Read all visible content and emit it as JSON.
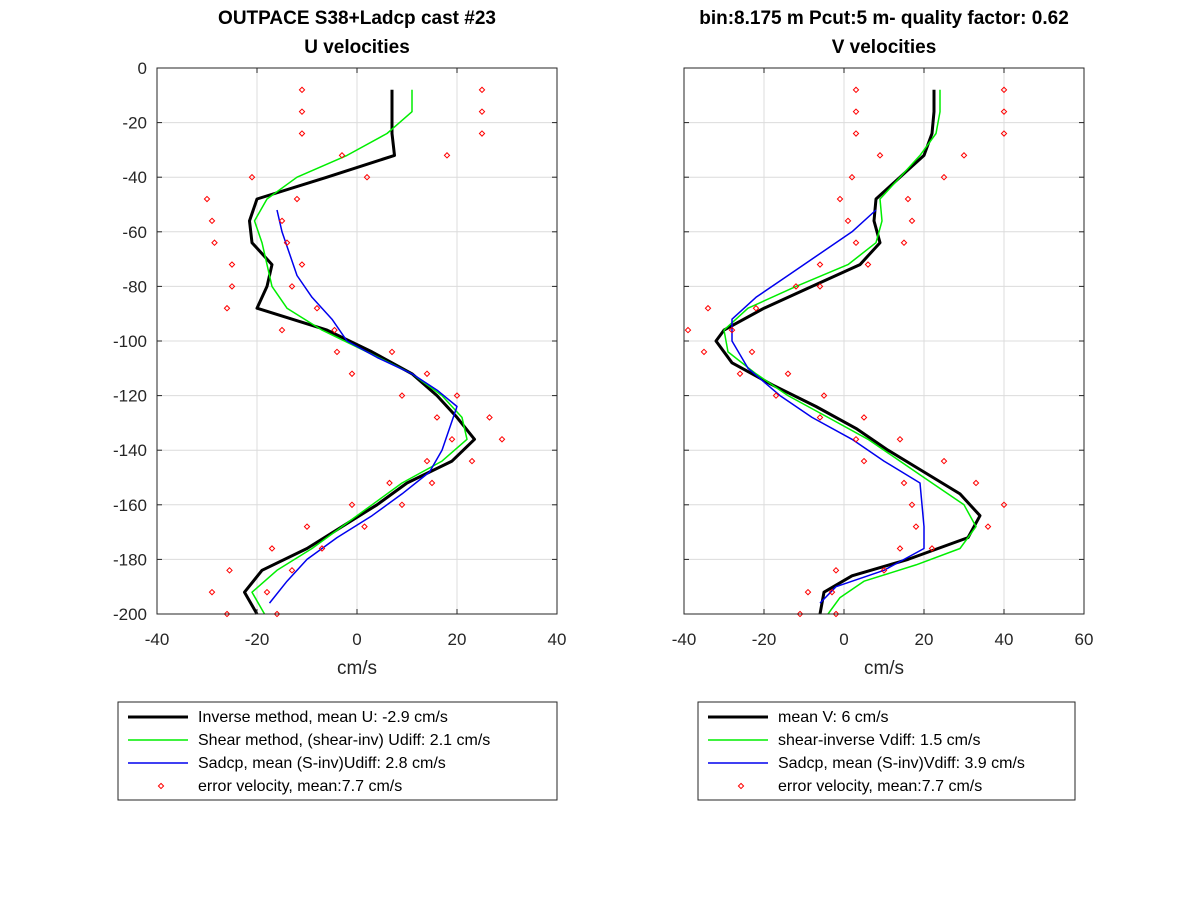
{
  "chart_data": [
    {
      "type": "line",
      "title": "OUTPACE S38+Ladcp cast #23",
      "subtitle": "U velocities",
      "xlabel": "cm/s",
      "ylabel": "",
      "xlim": [
        -40,
        40
      ],
      "ylim": [
        -200,
        0
      ],
      "xticks": [
        "-40",
        "-20",
        "0",
        "20",
        "40"
      ],
      "yticks": [
        "0",
        "-20",
        "-40",
        "-60",
        "-80",
        "-100",
        "-120",
        "-140",
        "-160",
        "-180",
        "-200"
      ],
      "grid": true,
      "legend_position": "below",
      "series": [
        {
          "name": "Inverse method, mean U:  -2.9 cm/s",
          "color": "#000000",
          "style": "line-thick",
          "points": [
            [
              7,
              -8
            ],
            [
              7,
              -16
            ],
            [
              7,
              -24
            ],
            [
              7.5,
              -32
            ],
            [
              -6,
              -40
            ],
            [
              -20,
              -48
            ],
            [
              -21.5,
              -56
            ],
            [
              -21,
              -64
            ],
            [
              -17,
              -72
            ],
            [
              -18,
              -80
            ],
            [
              -20,
              -88
            ],
            [
              -6,
              -96
            ],
            [
              3,
              -104
            ],
            [
              11,
              -112
            ],
            [
              16,
              -120
            ],
            [
              20,
              -128
            ],
            [
              23.5,
              -136
            ],
            [
              19,
              -144
            ],
            [
              10,
              -152
            ],
            [
              4,
              -160
            ],
            [
              -3,
              -168
            ],
            [
              -10,
              -176
            ],
            [
              -19,
              -184
            ],
            [
              -22.5,
              -192
            ],
            [
              -20,
              -200
            ]
          ]
        },
        {
          "name": "Shear method, (shear-inv)  Udiff:  2.1 cm/s",
          "color": "#00ee00",
          "style": "line",
          "points": [
            [
              11,
              -8
            ],
            [
              11,
              -16
            ],
            [
              6,
              -24
            ],
            [
              -2,
              -32
            ],
            [
              -12,
              -40
            ],
            [
              -18,
              -48
            ],
            [
              -20.5,
              -56
            ],
            [
              -19,
              -64
            ],
            [
              -18,
              -72
            ],
            [
              -17,
              -80
            ],
            [
              -14,
              -88
            ],
            [
              -7,
              -96
            ],
            [
              2,
              -104
            ],
            [
              11,
              -112
            ],
            [
              17,
              -120
            ],
            [
              21,
              -128
            ],
            [
              22,
              -136
            ],
            [
              17,
              -144
            ],
            [
              9,
              -152
            ],
            [
              3,
              -160
            ],
            [
              -3,
              -168
            ],
            [
              -9,
              -176
            ],
            [
              -16,
              -184
            ],
            [
              -21,
              -192
            ],
            [
              -18.5,
              -200
            ]
          ]
        },
        {
          "name": "Sadcp, mean (S-inv)Udiff: 2.8 cm/s",
          "color": "#0000ee",
          "style": "line",
          "points": [
            [
              -16,
              -52
            ],
            [
              -15,
              -60
            ],
            [
              -13.5,
              -68
            ],
            [
              -12,
              -76
            ],
            [
              -9,
              -84
            ],
            [
              -5,
              -92
            ],
            [
              -2,
              -100
            ],
            [
              4,
              -106
            ],
            [
              11,
              -112
            ],
            [
              16,
              -118
            ],
            [
              20,
              -124
            ],
            [
              18.5,
              -132
            ],
            [
              17,
              -140
            ],
            [
              14.5,
              -148
            ],
            [
              9,
              -156
            ],
            [
              3,
              -164
            ],
            [
              -4,
              -172
            ],
            [
              -10,
              -180
            ],
            [
              -14,
              -188
            ],
            [
              -17.5,
              -196
            ]
          ]
        },
        {
          "name": "error velocity, mean:7.7 cm/s",
          "color": "#ff0000",
          "style": "markers",
          "points": [
            [
              -11,
              -8
            ],
            [
              25,
              -8
            ],
            [
              -11,
              -16
            ],
            [
              25,
              -16
            ],
            [
              -11,
              -24
            ],
            [
              25,
              -24
            ],
            [
              -3,
              -32
            ],
            [
              18,
              -32
            ],
            [
              -21,
              -40
            ],
            [
              2,
              -40
            ],
            [
              -30,
              -48
            ],
            [
              -12,
              -48
            ],
            [
              -29,
              -56
            ],
            [
              -15,
              -56
            ],
            [
              -28.5,
              -64
            ],
            [
              -14,
              -64
            ],
            [
              -25,
              -72
            ],
            [
              -11,
              -72
            ],
            [
              -25,
              -80
            ],
            [
              -13,
              -80
            ],
            [
              -26,
              -88
            ],
            [
              -8,
              -88
            ],
            [
              -15,
              -96
            ],
            [
              -4.5,
              -96
            ],
            [
              -4,
              -104
            ],
            [
              7,
              -104
            ],
            [
              -1,
              -112
            ],
            [
              14,
              -112
            ],
            [
              9,
              -120
            ],
            [
              20,
              -120
            ],
            [
              16,
              -128
            ],
            [
              26.5,
              -128
            ],
            [
              19,
              -136
            ],
            [
              29,
              -136
            ],
            [
              14,
              -144
            ],
            [
              23,
              -144
            ],
            [
              6.5,
              -152
            ],
            [
              15,
              -152
            ],
            [
              -1,
              -160
            ],
            [
              9,
              -160
            ],
            [
              -10,
              -168
            ],
            [
              1.5,
              -168
            ],
            [
              -17,
              -176
            ],
            [
              -7,
              -176
            ],
            [
              -25.5,
              -184
            ],
            [
              -13,
              -184
            ],
            [
              -29,
              -192
            ],
            [
              -18,
              -192
            ],
            [
              -26,
              -200
            ],
            [
              -16,
              -200
            ]
          ]
        }
      ]
    },
    {
      "type": "line",
      "title": "bin:8.175 m  Pcut:5 m- quality factor:  0.62",
      "subtitle": "V velocities",
      "xlabel": "cm/s",
      "ylabel": "",
      "xlim": [
        -40,
        60
      ],
      "ylim": [
        -200,
        0
      ],
      "xticks": [
        "-40",
        "-20",
        "0",
        "20",
        "40",
        "60"
      ],
      "yticks": [],
      "grid": true,
      "legend_position": "below",
      "series": [
        {
          "name": "mean V:  6 cm/s",
          "color": "#000000",
          "style": "line-thick",
          "points": [
            [
              22.5,
              -8
            ],
            [
              22.5,
              -16
            ],
            [
              22,
              -24
            ],
            [
              20,
              -32
            ],
            [
              14,
              -40
            ],
            [
              8,
              -48
            ],
            [
              7.5,
              -56
            ],
            [
              9,
              -64
            ],
            [
              4,
              -72
            ],
            [
              -8,
              -80
            ],
            [
              -20,
              -88
            ],
            [
              -30,
              -96
            ],
            [
              -32,
              -100
            ],
            [
              -28,
              -108
            ],
            [
              -18,
              -116
            ],
            [
              -7,
              -124
            ],
            [
              3,
              -132
            ],
            [
              11,
              -140
            ],
            [
              20,
              -148
            ],
            [
              29,
              -156
            ],
            [
              34,
              -164
            ],
            [
              31,
              -172
            ],
            [
              16,
              -180
            ],
            [
              2,
              -186
            ],
            [
              -5,
              -192
            ],
            [
              -6,
              -200
            ]
          ]
        },
        {
          "name": "shear-inverse Vdiff:  1.5 cm/s",
          "color": "#00ee00",
          "style": "line",
          "points": [
            [
              24,
              -8
            ],
            [
              24,
              -16
            ],
            [
              23,
              -24
            ],
            [
              19,
              -32
            ],
            [
              14,
              -40
            ],
            [
              9,
              -48
            ],
            [
              9.5,
              -56
            ],
            [
              8,
              -64
            ],
            [
              1,
              -72
            ],
            [
              -12,
              -80
            ],
            [
              -24,
              -88
            ],
            [
              -30,
              -96
            ],
            [
              -29,
              -104
            ],
            [
              -22,
              -112
            ],
            [
              -14,
              -120
            ],
            [
              -4,
              -128
            ],
            [
              6,
              -136
            ],
            [
              14,
              -144
            ],
            [
              22,
              -152
            ],
            [
              30,
              -160
            ],
            [
              33,
              -168
            ],
            [
              29,
              -176
            ],
            [
              18,
              -182
            ],
            [
              5,
              -188
            ],
            [
              -1,
              -194
            ],
            [
              -4,
              -200
            ]
          ]
        },
        {
          "name": "Sadcp, mean (S-inv)Vdiff: 3.9 cm/s",
          "color": "#0000ee",
          "style": "line",
          "points": [
            [
              8,
              -52
            ],
            [
              2,
              -60
            ],
            [
              -6,
              -68
            ],
            [
              -14,
              -76
            ],
            [
              -22,
              -84
            ],
            [
              -28,
              -92
            ],
            [
              -28,
              -100
            ],
            [
              -24,
              -110
            ],
            [
              -16,
              -120
            ],
            [
              -8,
              -128
            ],
            [
              2,
              -136
            ],
            [
              10,
              -144
            ],
            [
              19,
              -152
            ],
            [
              19.5,
              -160
            ],
            [
              20,
              -168
            ],
            [
              20,
              -176
            ],
            [
              10,
              -184
            ],
            [
              -2,
              -190
            ],
            [
              -6,
              -196
            ]
          ]
        },
        {
          "name": "error velocity, mean:7.7 cm/s",
          "color": "#ff0000",
          "style": "markers",
          "points": [
            [
              3,
              -8
            ],
            [
              40,
              -8
            ],
            [
              3,
              -16
            ],
            [
              40,
              -16
            ],
            [
              3,
              -24
            ],
            [
              40,
              -24
            ],
            [
              9,
              -32
            ],
            [
              30,
              -32
            ],
            [
              2,
              -40
            ],
            [
              25,
              -40
            ],
            [
              -1,
              -48
            ],
            [
              16,
              -48
            ],
            [
              1,
              -56
            ],
            [
              17,
              -56
            ],
            [
              3,
              -64
            ],
            [
              15,
              -64
            ],
            [
              -6,
              -72
            ],
            [
              6,
              -72
            ],
            [
              -12,
              -80
            ],
            [
              -6,
              -80
            ],
            [
              -34,
              -88
            ],
            [
              -22,
              -88
            ],
            [
              -39,
              -96
            ],
            [
              -28,
              -96
            ],
            [
              -35,
              -104
            ],
            [
              -23,
              -104
            ],
            [
              -26,
              -112
            ],
            [
              -14,
              -112
            ],
            [
              -17,
              -120
            ],
            [
              -5,
              -120
            ],
            [
              -6,
              -128
            ],
            [
              5,
              -128
            ],
            [
              3,
              -136
            ],
            [
              14,
              -136
            ],
            [
              5,
              -144
            ],
            [
              25,
              -144
            ],
            [
              15,
              -152
            ],
            [
              33,
              -152
            ],
            [
              17,
              -160
            ],
            [
              40,
              -160
            ],
            [
              18,
              -168
            ],
            [
              36,
              -168
            ],
            [
              14,
              -176
            ],
            [
              22,
              -176
            ],
            [
              -2,
              -184
            ],
            [
              10,
              -184
            ],
            [
              -9,
              -192
            ],
            [
              -3,
              -192
            ],
            [
              -11,
              -200
            ],
            [
              -2,
              -200
            ]
          ]
        }
      ]
    }
  ]
}
